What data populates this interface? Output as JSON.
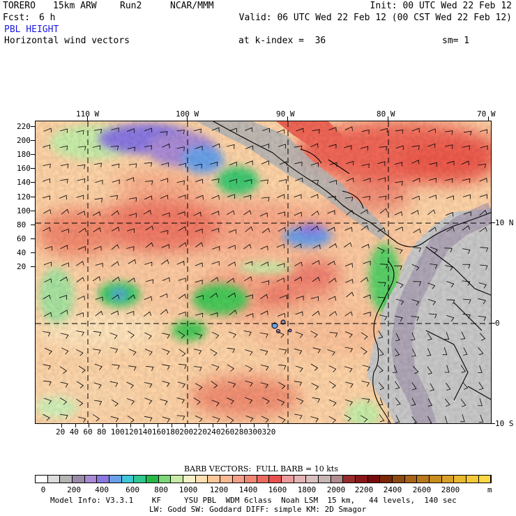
{
  "header": {
    "model": "TORERO",
    "resolution": "15km ARW",
    "run": "Run2",
    "org": "NCAR/MMM",
    "init": "Init: 00 UTC Wed 22 Feb 12",
    "fcst_label": "Fcst:",
    "fcst_value": "6 h",
    "valid": "Valid: 06 UTC Wed 22 Feb 12 (00 CST Wed 22 Feb 12)",
    "field": "PBL HEIGHT",
    "overlay": "Horizontal wind vectors",
    "kindex": "at k-index =  36",
    "sm": "sm= 1"
  },
  "axes": {
    "top_lon": [
      "110 W",
      "100 W",
      "90 W",
      "80 W",
      "70 W"
    ],
    "right_lat": [
      "10 N",
      "0",
      "10 S"
    ],
    "left_y": [
      "220",
      "200",
      "180",
      "160",
      "140",
      "120",
      "100",
      "80",
      "60",
      "40",
      "20"
    ],
    "bottom_x": [
      "20",
      "40",
      "60",
      "80",
      "100",
      "120",
      "140",
      "160",
      "180",
      "200",
      "220",
      "240",
      "260",
      "280",
      "300",
      "320"
    ]
  },
  "legend": {
    "barb_label": "BARB VECTORS:  FULL BARB = 10 kts",
    "labels": [
      "0",
      "200",
      "400",
      "600",
      "800",
      "1000",
      "1200",
      "1400",
      "1600",
      "1800",
      "2000",
      "2200",
      "2400",
      "2600",
      "2800"
    ],
    "unit": "m",
    "colors": [
      "#ffffff",
      "#dcdcdc",
      "#b4b4b4",
      "#9a8aa8",
      "#a98ad4",
      "#8a78e0",
      "#6aa0e8",
      "#40c8d8",
      "#30c890",
      "#28b848",
      "#7cd878",
      "#c8eca8",
      "#f4f0c8",
      "#fce0b4",
      "#fcc89a",
      "#f8b890",
      "#f4a088",
      "#f08878",
      "#ec6c60",
      "#e85050",
      "#ec9c9c",
      "#e4b4b4",
      "#d8c0c0",
      "#c8b4b4",
      "#b08c8c",
      "#982c2c",
      "#881818",
      "#780c0c",
      "#7c2808",
      "#8c4a10",
      "#a86418",
      "#b8781c",
      "#c88c20",
      "#d8a028",
      "#e8b830",
      "#f4c838",
      "#fcd844"
    ]
  },
  "footer": {
    "line1": "Model Info: V3.3.1    KF     YSU PBL  WDM 6class  Noah LSM  15 km,   44 levels,  140 sec",
    "line2": "LW: Godd SW: Goddard DIFF: simple KM: 2D Smagor"
  }
}
